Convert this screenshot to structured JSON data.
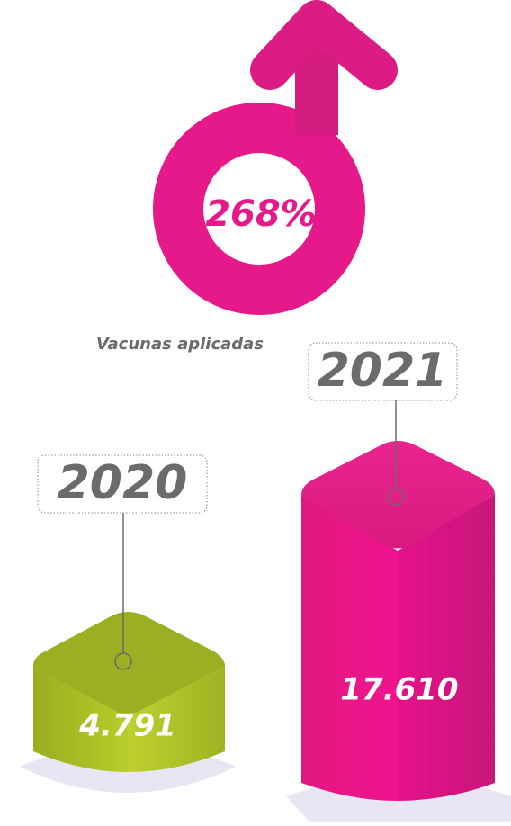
{
  "growth": "268%",
  "caption": "Vacunas aplicadas",
  "columns": [
    {
      "year": "2020",
      "value": "4.791"
    },
    {
      "year": "2021",
      "value": "17.610"
    }
  ]
}
